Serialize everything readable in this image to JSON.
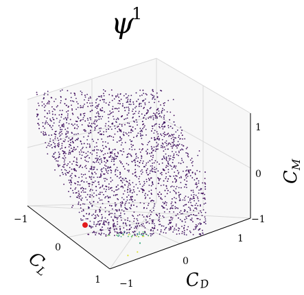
{
  "chart_data": {
    "type": "scatter",
    "title": "ψ",
    "title_superscript": "1",
    "xlabel": "C_L",
    "ylabel": "C_D",
    "zlabel": "C_M",
    "xlabel_main": "C",
    "xlabel_sub": "L",
    "ylabel_main": "C",
    "ylabel_sub": "D",
    "zlabel_main": "C",
    "zlabel_sub": "M",
    "x_ticks": [
      "−1",
      "0",
      "1"
    ],
    "y_ticks": [
      "−1",
      "0",
      "1"
    ],
    "z_ticks": [
      "−1",
      "0",
      "1"
    ],
    "xlim": [
      -1,
      1
    ],
    "ylim": [
      -1,
      1
    ],
    "zlim": [
      -1,
      1
    ],
    "grid": true,
    "colormap": "viridis",
    "colors": {
      "dark": "#440154",
      "mid": "#21918c",
      "light": "#5ec962",
      "high": "#fde725",
      "marker": "#e31a1c"
    },
    "series": [
      {
        "name": "",
        "points": [
          {
            "x": -0.9,
            "y": -0.9,
            "z": 0.6,
            "c": 0.05
          },
          {
            "x": -0.8,
            "y": -0.6,
            "z": 0.8,
            "c": 0.05
          },
          {
            "x": -0.7,
            "y": -0.2,
            "z": 0.9,
            "c": 0.05
          },
          {
            "x": -0.6,
            "y": 0.2,
            "z": 1.0,
            "c": 0.05
          },
          {
            "x": -0.5,
            "y": 0.5,
            "z": 0.9,
            "c": 0.05
          },
          {
            "x": -0.4,
            "y": 0.7,
            "z": 0.7,
            "c": 0.05
          },
          {
            "x": -0.3,
            "y": 0.8,
            "z": 0.4,
            "c": 0.05
          },
          {
            "x": -0.6,
            "y": -0.7,
            "z": 0.2,
            "c": 0.05
          },
          {
            "x": -0.3,
            "y": -0.5,
            "z": -0.2,
            "c": 0.05
          },
          {
            "x": 0.0,
            "y": -0.4,
            "z": -0.6,
            "c": 0.05
          },
          {
            "x": 0.2,
            "y": -0.3,
            "z": -0.8,
            "c": 0.3
          },
          {
            "x": 0.4,
            "y": -0.2,
            "z": -0.9,
            "c": 0.6
          },
          {
            "x": 0.5,
            "y": -0.3,
            "z": -1.0,
            "c": 0.95
          },
          {
            "x": 0.6,
            "y": -0.5,
            "z": -1.0,
            "c": 0.95
          }
        ]
      }
    ],
    "highlight_point": {
      "x": 0.8,
      "y": -0.6,
      "z": -1.0
    }
  }
}
